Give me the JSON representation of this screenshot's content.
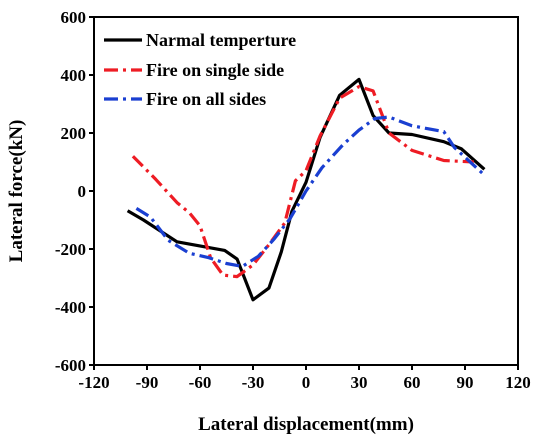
{
  "chart_data": {
    "type": "line",
    "title": "",
    "xlabel": "Lateral displacement(mm)",
    "ylabel": "Lateral force(kN)",
    "xlim": [
      -120,
      120
    ],
    "ylim": [
      -600,
      600
    ],
    "xticks": [
      -120,
      -90,
      -60,
      -30,
      0,
      30,
      60,
      90,
      120
    ],
    "yticks": [
      -600,
      -400,
      -200,
      0,
      200,
      400,
      600
    ],
    "grid": false,
    "legend_position": "top-center",
    "series": [
      {
        "name": "Narmal temperture",
        "color": "#000000",
        "dash": "solid",
        "x": [
          -101,
          -92,
          -73,
          -55,
          -46,
          -39,
          -30,
          -21,
          -14,
          -8,
          0,
          8,
          19,
          30,
          38,
          47,
          60,
          78,
          88,
          101
        ],
        "y": [
          -68,
          -100,
          -175,
          -195,
          -205,
          -235,
          -375,
          -335,
          -210,
          -70,
          30,
          185,
          330,
          385,
          260,
          200,
          195,
          170,
          145,
          75
        ]
      },
      {
        "name": "Fire on single side",
        "color": "#ee1c24",
        "dash": "dashdot",
        "x": [
          -98,
          -85,
          -73,
          -66,
          -60,
          -54,
          -47,
          -39,
          -30,
          -21,
          -12,
          -6,
          0,
          8,
          19,
          30,
          38,
          47,
          60,
          78,
          95
        ],
        "y": [
          120,
          40,
          -40,
          -75,
          -120,
          -230,
          -290,
          -295,
          -255,
          -185,
          -110,
          35,
          70,
          190,
          320,
          360,
          345,
          200,
          140,
          105,
          100
        ]
      },
      {
        "name": "Fire on all sides",
        "color": "#1a3fd1",
        "dash": "dashdot",
        "x": [
          -96,
          -88,
          -78,
          -66,
          -55,
          -45,
          -36,
          -27,
          -18,
          -9,
          0,
          9,
          21,
          30,
          39,
          47,
          60,
          78,
          84,
          101
        ],
        "y": [
          -60,
          -90,
          -170,
          -215,
          -230,
          -250,
          -260,
          -225,
          -165,
          -95,
          0,
          80,
          160,
          210,
          250,
          255,
          225,
          205,
          150,
          55
        ]
      }
    ]
  }
}
